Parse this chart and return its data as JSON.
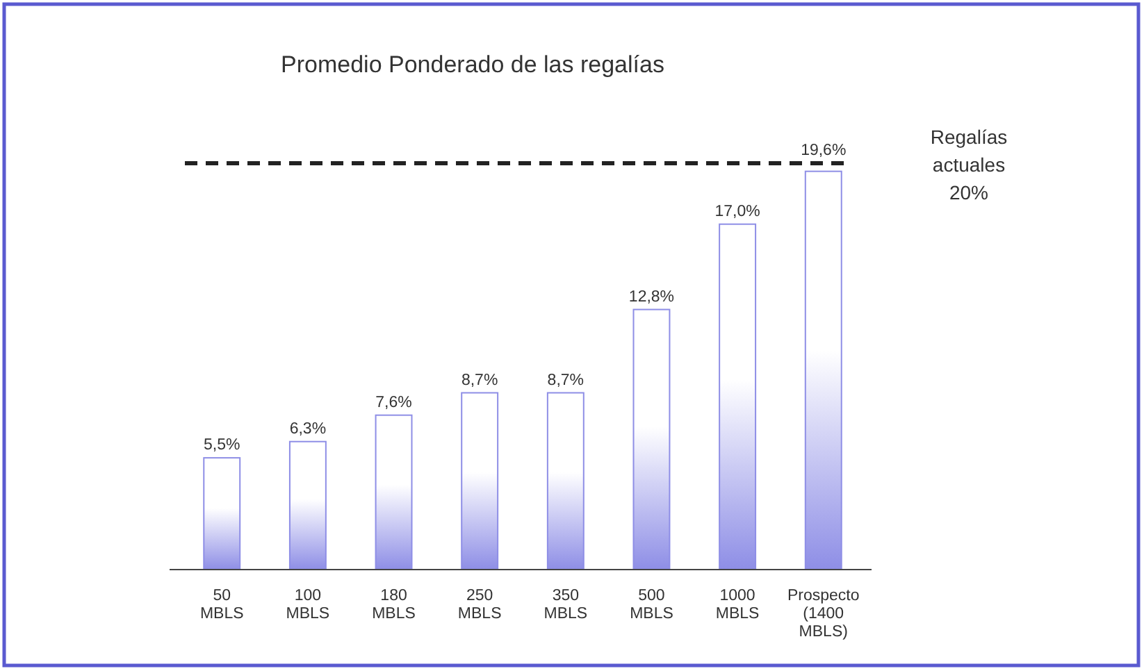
{
  "chart_data": {
    "type": "bar",
    "title": "Promedio Ponderado de las regalías",
    "categories": [
      "50\nMBLS",
      "100\nMBLS",
      "180\nMBLS",
      "250\nMBLS",
      "350\nMBLS",
      "500\nMBLS",
      "1000\nMBLS",
      "Prospecto\n(1400\nMBLS)"
    ],
    "values": [
      5.5,
      6.3,
      7.6,
      8.7,
      8.7,
      12.8,
      17.0,
      19.6
    ],
    "value_labels": [
      "5,5%",
      "6,3%",
      "7,6%",
      "8,7%",
      "8,7%",
      "12,8%",
      "17,0%",
      "19,6%"
    ],
    "color": "#8e8ee6",
    "tick_labels": "x",
    "ref_lines": [
      {
        "axis": "y",
        "value": 20,
        "label": "Regalías\nactuales\n20%",
        "color": "#222222",
        "line_style": "dashed"
      }
    ]
  }
}
